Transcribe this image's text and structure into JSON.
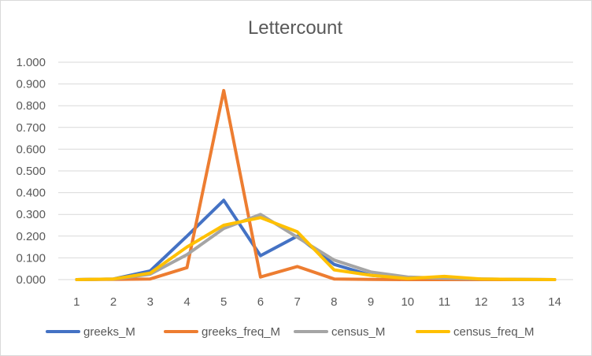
{
  "chart_data": {
    "type": "line",
    "title": "Lettercount",
    "xlabel": "",
    "ylabel": "",
    "categories": [
      "1",
      "2",
      "3",
      "4",
      "5",
      "6",
      "7",
      "8",
      "9",
      "10",
      "11",
      "12",
      "13",
      "14"
    ],
    "ylim": [
      0,
      1.0
    ],
    "yticks": [
      "0.000",
      "0.100",
      "0.200",
      "0.300",
      "0.400",
      "0.500",
      "0.600",
      "0.700",
      "0.800",
      "0.900",
      "1.000"
    ],
    "grid": true,
    "legend_position": "bottom",
    "series": [
      {
        "name": "greeks_M",
        "color": "#4472C4",
        "values": [
          0.0,
          0.003,
          0.04,
          0.2,
          0.365,
          0.11,
          0.2,
          0.07,
          0.02,
          0.005,
          0.003,
          0.002,
          0.001,
          0.0
        ]
      },
      {
        "name": "greeks_freq_M",
        "color": "#ED7D31",
        "values": [
          0.0,
          0.001,
          0.003,
          0.055,
          0.87,
          0.012,
          0.06,
          0.003,
          0.001,
          0.0,
          0.0,
          0.0,
          0.0,
          0.0
        ]
      },
      {
        "name": "census_M",
        "color": "#A5A5A5",
        "values": [
          0.0,
          0.002,
          0.025,
          0.115,
          0.235,
          0.3,
          0.195,
          0.09,
          0.035,
          0.012,
          0.006,
          0.003,
          0.001,
          0.0
        ]
      },
      {
        "name": "census_freq_M",
        "color": "#FFC000",
        "values": [
          0.0,
          0.003,
          0.03,
          0.15,
          0.25,
          0.285,
          0.22,
          0.045,
          0.02,
          0.005,
          0.015,
          0.003,
          0.001,
          0.0
        ]
      }
    ]
  }
}
